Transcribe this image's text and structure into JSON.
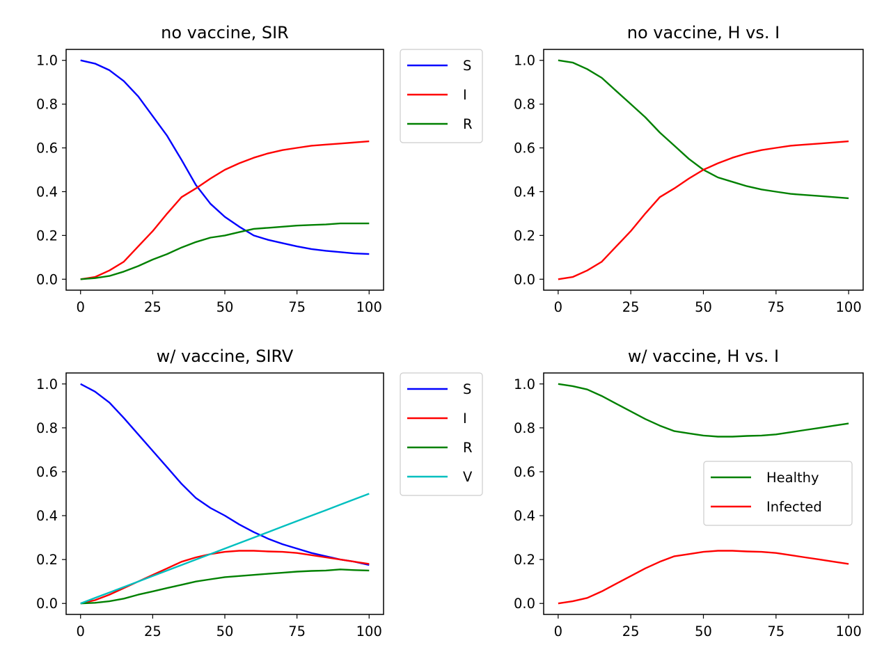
{
  "chart_data": [
    {
      "type": "line",
      "title": "no vaccine, SIR",
      "xlim": [
        -5,
        105
      ],
      "ylim": [
        -0.05,
        1.05
      ],
      "xticks": [
        "0",
        "25",
        "50",
        "75",
        "100"
      ],
      "yticks": [
        "0.0",
        "0.2",
        "0.4",
        "0.6",
        "0.8",
        "1.0"
      ],
      "legend_placement": "outside-upper-right",
      "x": [
        0,
        5,
        10,
        15,
        20,
        25,
        30,
        35,
        40,
        45,
        50,
        55,
        60,
        65,
        70,
        75,
        80,
        85,
        90,
        95,
        100
      ],
      "series": [
        {
          "name": "S",
          "color": "#0000ff",
          "values": [
            1.0,
            0.985,
            0.955,
            0.905,
            0.835,
            0.745,
            0.655,
            0.545,
            0.43,
            0.345,
            0.285,
            0.24,
            0.2,
            0.18,
            0.165,
            0.15,
            0.138,
            0.13,
            0.124,
            0.118,
            0.115
          ]
        },
        {
          "name": "I",
          "color": "#ff0000",
          "values": [
            0.0,
            0.01,
            0.04,
            0.08,
            0.15,
            0.22,
            0.3,
            0.375,
            0.415,
            0.46,
            0.5,
            0.53,
            0.555,
            0.575,
            0.59,
            0.6,
            0.61,
            0.615,
            0.62,
            0.625,
            0.63
          ]
        },
        {
          "name": "R",
          "color": "#008000",
          "values": [
            0.0,
            0.005,
            0.015,
            0.035,
            0.06,
            0.09,
            0.115,
            0.145,
            0.17,
            0.19,
            0.2,
            0.215,
            0.23,
            0.235,
            0.24,
            0.245,
            0.248,
            0.25,
            0.255,
            0.255,
            0.255
          ]
        }
      ]
    },
    {
      "type": "line",
      "title": "no vaccine, H vs. I",
      "xlim": [
        -5,
        105
      ],
      "ylim": [
        -0.05,
        1.05
      ],
      "xticks": [
        "0",
        "25",
        "50",
        "75",
        "100"
      ],
      "yticks": [
        "0.0",
        "0.2",
        "0.4",
        "0.6",
        "0.8",
        "1.0"
      ],
      "x": [
        0,
        5,
        10,
        15,
        20,
        25,
        30,
        35,
        40,
        45,
        50,
        55,
        60,
        65,
        70,
        75,
        80,
        85,
        90,
        95,
        100
      ],
      "series": [
        {
          "color": "#008000",
          "values": [
            1.0,
            0.99,
            0.96,
            0.92,
            0.86,
            0.8,
            0.74,
            0.67,
            0.61,
            0.55,
            0.5,
            0.465,
            0.445,
            0.425,
            0.41,
            0.4,
            0.39,
            0.385,
            0.38,
            0.375,
            0.37
          ]
        },
        {
          "color": "#ff0000",
          "values": [
            0.0,
            0.01,
            0.04,
            0.08,
            0.15,
            0.22,
            0.3,
            0.375,
            0.415,
            0.46,
            0.5,
            0.53,
            0.555,
            0.575,
            0.59,
            0.6,
            0.61,
            0.615,
            0.62,
            0.625,
            0.63
          ]
        }
      ]
    },
    {
      "type": "line",
      "title": "w/ vaccine, SIRV",
      "xlim": [
        -5,
        105
      ],
      "ylim": [
        -0.05,
        1.05
      ],
      "xticks": [
        "0",
        "25",
        "50",
        "75",
        "100"
      ],
      "yticks": [
        "0.0",
        "0.2",
        "0.4",
        "0.6",
        "0.8",
        "1.0"
      ],
      "legend_placement": "outside-upper-right",
      "x": [
        0,
        5,
        10,
        15,
        20,
        25,
        30,
        35,
        40,
        45,
        50,
        55,
        60,
        65,
        70,
        75,
        80,
        85,
        90,
        95,
        100
      ],
      "series": [
        {
          "name": "S",
          "color": "#0000ff",
          "values": [
            1.0,
            0.965,
            0.915,
            0.845,
            0.77,
            0.695,
            0.62,
            0.545,
            0.48,
            0.435,
            0.4,
            0.36,
            0.325,
            0.295,
            0.27,
            0.25,
            0.23,
            0.215,
            0.2,
            0.19,
            0.175
          ]
        },
        {
          "name": "I",
          "color": "#ff0000",
          "values": [
            0.0,
            0.015,
            0.04,
            0.07,
            0.1,
            0.13,
            0.16,
            0.19,
            0.21,
            0.225,
            0.235,
            0.24,
            0.24,
            0.237,
            0.235,
            0.23,
            0.22,
            0.21,
            0.2,
            0.19,
            0.18
          ]
        },
        {
          "name": "R",
          "color": "#008000",
          "values": [
            0.0,
            0.003,
            0.01,
            0.022,
            0.04,
            0.055,
            0.07,
            0.085,
            0.1,
            0.11,
            0.12,
            0.125,
            0.13,
            0.135,
            0.14,
            0.145,
            0.148,
            0.15,
            0.155,
            0.152,
            0.15
          ]
        },
        {
          "name": "V",
          "color": "#00bfbf",
          "values": [
            0.0,
            0.025,
            0.05,
            0.075,
            0.1,
            0.125,
            0.15,
            0.175,
            0.2,
            0.225,
            0.25,
            0.275,
            0.3,
            0.325,
            0.35,
            0.375,
            0.4,
            0.425,
            0.45,
            0.475,
            0.5
          ]
        }
      ]
    },
    {
      "type": "line",
      "title": "w/ vaccine, H vs. I",
      "xlim": [
        -5,
        105
      ],
      "ylim": [
        -0.05,
        1.05
      ],
      "xticks": [
        "0",
        "25",
        "50",
        "75",
        "100"
      ],
      "yticks": [
        "0.0",
        "0.2",
        "0.4",
        "0.6",
        "0.8",
        "1.0"
      ],
      "legend_placement": "center-right",
      "x": [
        0,
        5,
        10,
        15,
        20,
        25,
        30,
        35,
        40,
        45,
        50,
        55,
        60,
        65,
        70,
        75,
        80,
        85,
        90,
        95,
        100
      ],
      "series": [
        {
          "name": "Healthy",
          "color": "#008000",
          "values": [
            1.0,
            0.99,
            0.975,
            0.945,
            0.91,
            0.875,
            0.84,
            0.81,
            0.785,
            0.775,
            0.765,
            0.76,
            0.76,
            0.763,
            0.765,
            0.77,
            0.78,
            0.79,
            0.8,
            0.81,
            0.82
          ]
        },
        {
          "name": "Infected",
          "color": "#ff0000",
          "values": [
            0.0,
            0.01,
            0.025,
            0.055,
            0.09,
            0.125,
            0.16,
            0.19,
            0.215,
            0.225,
            0.235,
            0.24,
            0.24,
            0.237,
            0.235,
            0.23,
            0.22,
            0.21,
            0.2,
            0.19,
            0.18
          ]
        }
      ]
    }
  ]
}
